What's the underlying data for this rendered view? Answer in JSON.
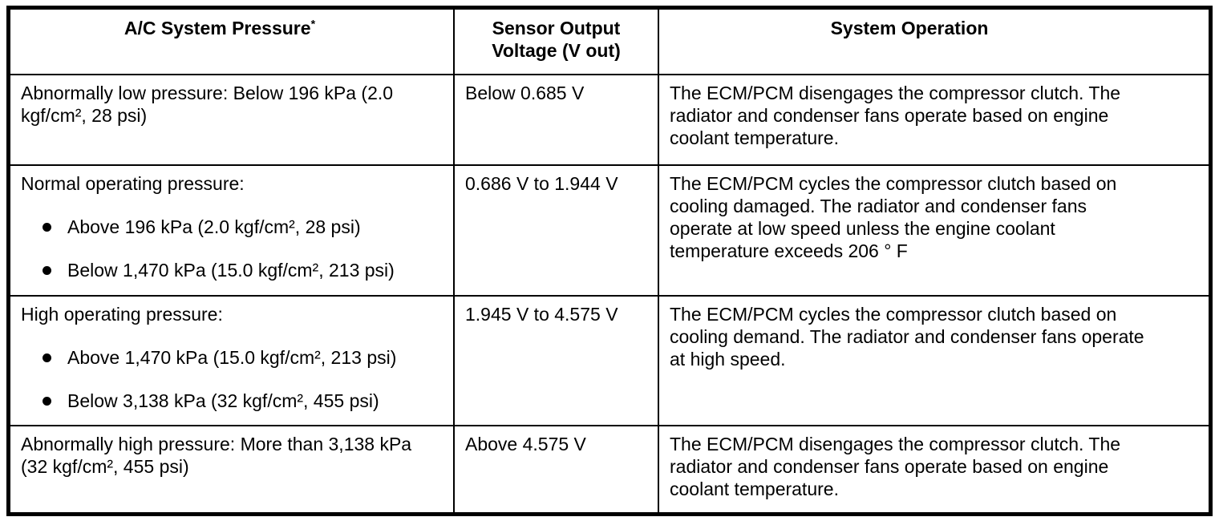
{
  "table": {
    "header": {
      "col_pressure": "A/C System Pressure",
      "col_pressure_note_marker": "*",
      "col_voltage": "Sensor Output Voltage (V out)",
      "col_operation": "System Operation"
    },
    "rows": [
      {
        "pressure": "Abnormally low pressure: Below 196 kPa (2.0 kgf/cm², 28 psi)",
        "voltage": "Below 0.685 V",
        "operation": "The ECM/PCM disengages the compressor clutch. The radiator and condenser fans operate based on engine coolant temperature."
      },
      {
        "pressure": "Normal operating pressure:",
        "pressure_bullets": [
          "Above 196 kPa (2.0 kgf/cm², 28 psi)",
          "Below 1,470 kPa (15.0 kgf/cm², 213 psi)"
        ],
        "voltage": "0.686 V to 1.944 V",
        "operation": "The ECM/PCM cycles the compressor clutch based on cooling damaged. The radiator and condenser fans operate at low speed unless the engine coolant temperature exceeds 206 ° F"
      },
      {
        "pressure": "High operating pressure:",
        "pressure_bullets": [
          "Above 1,470 kPa (15.0 kgf/cm², 213 psi)",
          "Below 3,138 kPa (32 kgf/cm², 455 psi)"
        ],
        "voltage": "1.945 V to 4.575 V",
        "operation": "The ECM/PCM cycles the compressor clutch based on cooling demand. The radiator and condenser fans operate at high speed."
      },
      {
        "pressure": "Abnormally high pressure: More than 3,138 kPa (32 kgf/cm², 455 psi)",
        "voltage": "Above 4.575 V",
        "operation": "The ECM/PCM disengages the compressor clutch. The radiator and condenser fans operate based on engine coolant temperature."
      }
    ]
  }
}
